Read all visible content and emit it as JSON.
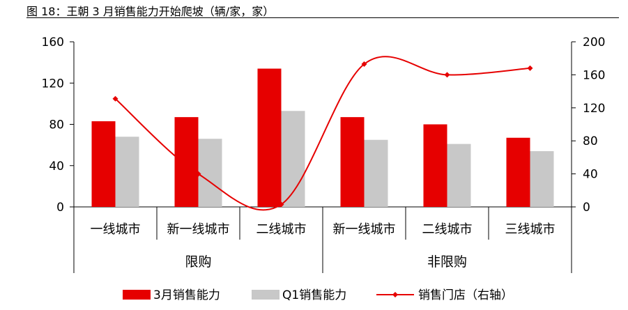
{
  "title": "图 18：王朝 3 月销售能力开始爬坡（辆/家，家）",
  "chart_data": {
    "type": "bar",
    "categories": [
      "一线城市",
      "新一线城市",
      "二线城市",
      "新一线城市",
      "二线城市",
      "三线城市"
    ],
    "groups": [
      {
        "label": "限购",
        "span": 3
      },
      {
        "label": "非限购",
        "span": 3
      }
    ],
    "series": [
      {
        "name": "3月销售能力",
        "type": "bar",
        "axis": "left",
        "color": "#e60000",
        "values": [
          83,
          87,
          134,
          87,
          80,
          67
        ]
      },
      {
        "name": "Q1销售能力",
        "type": "bar",
        "axis": "left",
        "color": "#c8c8c8",
        "values": [
          68,
          66,
          93,
          65,
          61,
          54
        ]
      },
      {
        "name": "销售门店（右轴）",
        "type": "line",
        "axis": "right",
        "smooth": true,
        "color": "#e60000",
        "values": [
          131,
          40,
          3,
          173,
          160,
          168
        ]
      }
    ],
    "y_left": {
      "min": 0,
      "max": 160,
      "ticks": [
        0,
        40,
        80,
        120,
        160
      ]
    },
    "y_right": {
      "min": 0,
      "max": 200,
      "ticks": [
        0,
        40,
        80,
        120,
        160,
        200
      ]
    },
    "grid": false,
    "legend_position": "bottom"
  }
}
